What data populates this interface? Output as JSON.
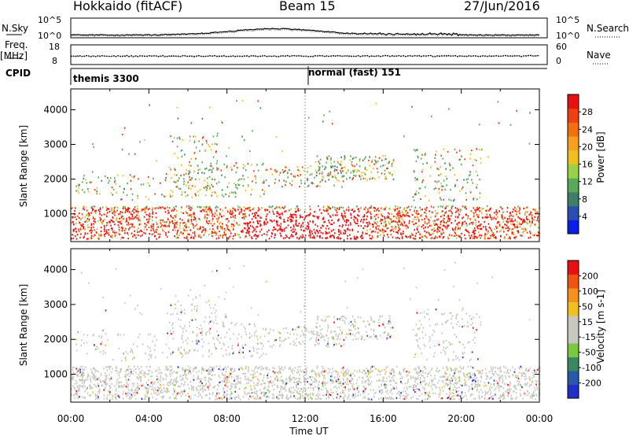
{
  "header": {
    "title": "Hokkaido (fitACF)",
    "beam": "Beam 15",
    "date": "27/Jun/2016"
  },
  "strips": {
    "nsky_label": "N.Sky",
    "nsky_top": "10^5",
    "nsky_bottom": "10^0",
    "nsearch_label": "N.Search",
    "nsearch_top": "10^5",
    "nsearch_bottom": "10^0",
    "freq_label_line1": "Freq.",
    "freq_label_line2": "[MHz]",
    "freq_top": "18",
    "freq_bottom": "8",
    "nave_label": "Nave",
    "nave_top": "60",
    "nave_bottom": "0",
    "cpid_label": "CPID",
    "cpid_mode1": "themis 3300",
    "cpid_mode2": "normal (fast) 151"
  },
  "colors": {
    "power": [
      "#0a1ee6",
      "#2a4fb0",
      "#3f7f6a",
      "#5aa85a",
      "#9ad04a",
      "#f0c020",
      "#f7a020",
      "#f27010",
      "#ee4010",
      "#e81010"
    ],
    "velocity": [
      "#1f2fc8",
      "#2a58a8",
      "#3a8860",
      "#7ac840",
      "#c8c8c0",
      "#c8c8c0",
      "#f0c020",
      "#f39020",
      "#ee5510",
      "#e81010"
    ]
  },
  "chart_data": [
    {
      "type": "heatmap",
      "name": "power",
      "xlabel": "",
      "ylabel": "Slant Range [km]",
      "ylim": [
        200,
        4600
      ],
      "yticks": [
        1000,
        2000,
        3000,
        4000
      ],
      "colorbar_label": "Power [dB]",
      "colorbar_ticks": [
        "28",
        "24",
        "20",
        "16",
        "12",
        "8",
        "4"
      ],
      "xlim": [
        0,
        24
      ],
      "xticks": [
        "00:00",
        "04:00",
        "08:00",
        "12:00",
        "16:00",
        "20:00",
        "00:00"
      ]
    },
    {
      "type": "heatmap",
      "name": "velocity",
      "xlabel": "Time UT",
      "ylabel": "Slant Range [km]",
      "ylim": [
        200,
        4600
      ],
      "yticks": [
        1000,
        2000,
        3000,
        4000
      ],
      "colorbar_label": "Velocity [m s-1]",
      "colorbar_ticks": [
        "200",
        "100",
        "50",
        "15",
        "-15",
        "-50",
        "-100",
        "-200"
      ],
      "xlim": [
        0,
        24
      ],
      "xticks": [
        "00:00",
        "04:00",
        "08:00",
        "12:00",
        "16:00",
        "20:00",
        "00:00"
      ]
    }
  ]
}
